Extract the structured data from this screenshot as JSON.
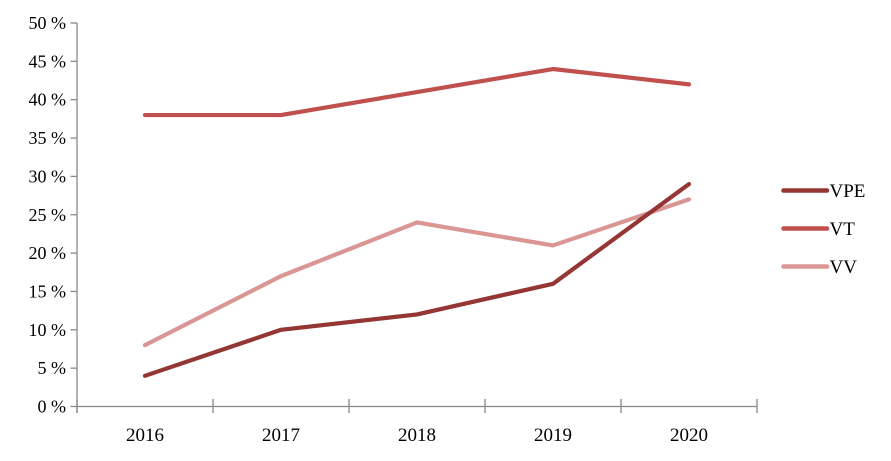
{
  "chart_data": {
    "type": "line",
    "title": "",
    "categories": [
      "2016",
      "2017",
      "2018",
      "2019",
      "2020"
    ],
    "series": [
      {
        "name": "VPE",
        "values": [
          4,
          10,
          12,
          16,
          29
        ],
        "color": "#943634"
      },
      {
        "name": "VT",
        "values": [
          38,
          38,
          41,
          44,
          42
        ],
        "color": "#C0504D"
      },
      {
        "name": "VV",
        "values": [
          8,
          17,
          24,
          21,
          27
        ],
        "color": "#D99694"
      }
    ],
    "xlabel": "",
    "ylabel": "",
    "ylim": [
      0,
      50
    ],
    "ytick_step": 5,
    "ytick_suffix": " %",
    "grid": false,
    "legend_position": "right",
    "legend_labels": [
      "VPE",
      "VT",
      "VV"
    ],
    "axis_color": "#898989",
    "label_color": "#000000",
    "background_color": "#ffffff"
  }
}
